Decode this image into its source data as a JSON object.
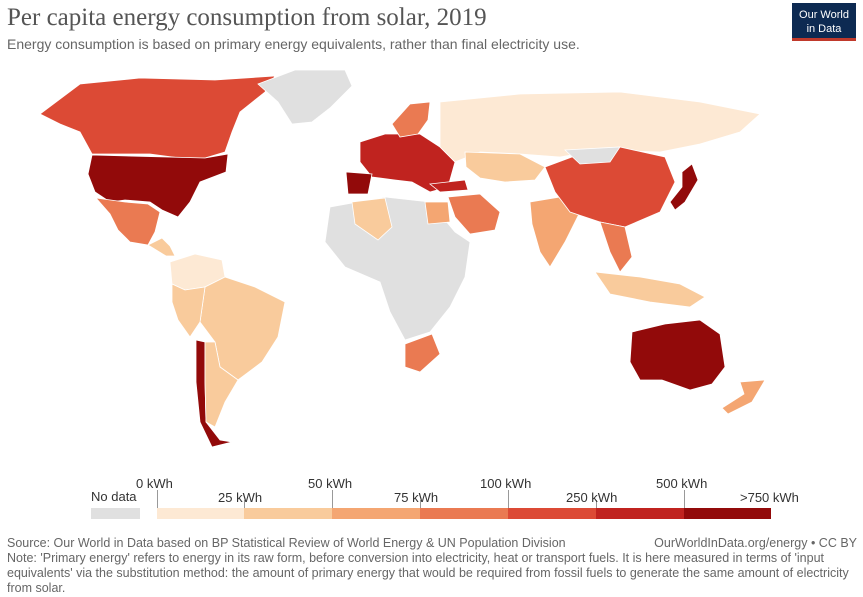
{
  "header": {
    "title": "Per capita energy consumption from solar, 2019",
    "subtitle": "Energy consumption is based on primary energy equivalents, rather than final electricity use.",
    "logo_line1": "Our World",
    "logo_line2": "in Data"
  },
  "legend": {
    "no_data_label": "No data",
    "top_ticks": [
      "0 kWh",
      "50 kWh",
      "100 kWh",
      "500 kWh"
    ],
    "bottom_ticks": [
      "25 kWh",
      "75 kWh",
      "250 kWh",
      ">750 kWh"
    ],
    "bins": [
      {
        "color": "#fde9d4"
      },
      {
        "color": "#f9cb9c"
      },
      {
        "color": "#f4a672"
      },
      {
        "color": "#ea7a52"
      },
      {
        "color": "#dc4a35"
      },
      {
        "color": "#c0231f"
      },
      {
        "color": "#920a0a"
      }
    ],
    "no_data_color": "#e0e0e0"
  },
  "footer": {
    "source": "Source: Our World in Data based on BP Statistical Review of World Energy & UN Population Division",
    "url": "OurWorldInData.org/energy • CC BY",
    "note": "Note: 'Primary energy' refers to energy in its raw form, before conversion into electricity, heat or transport fuels. It is here measured in terms of 'input equivalents' via the substitution method: the amount of primary energy that would be required from fossil fuels to generate the same amount of electricity from solar."
  },
  "regions": [
    {
      "name": "Canada",
      "color": "#dc4a35"
    },
    {
      "name": "Greenland",
      "color": "#e0e0e0"
    },
    {
      "name": "United States",
      "color": "#920a0a"
    },
    {
      "name": "Mexico",
      "color": "#ea7a52"
    },
    {
      "name": "Central America",
      "color": "#f9cb9c"
    },
    {
      "name": "Colombia and Venezuela",
      "color": "#fde9d4"
    },
    {
      "name": "Brazil",
      "color": "#f9cb9c"
    },
    {
      "name": "Peru",
      "color": "#f9cb9c"
    },
    {
      "name": "Chile",
      "color": "#920a0a"
    },
    {
      "name": "Argentina",
      "color": "#f9cb9c"
    },
    {
      "name": "Europe",
      "color": "#c0231f"
    },
    {
      "name": "Spain and Portugal",
      "color": "#920a0a"
    },
    {
      "name": "Scandinavia",
      "color": "#ea7a52"
    },
    {
      "name": "Russia",
      "color": "#fde9d4"
    },
    {
      "name": "Kazakhstan",
      "color": "#f9cb9c"
    },
    {
      "name": "Turkey",
      "color": "#c0231f"
    },
    {
      "name": "Africa",
      "color": "#e0e0e0"
    },
    {
      "name": "Algeria",
      "color": "#f9cb9c"
    },
    {
      "name": "Egypt",
      "color": "#f4a672"
    },
    {
      "name": "South Africa",
      "color": "#ea7a52"
    },
    {
      "name": "Middle East",
      "color": "#ea7a52"
    },
    {
      "name": "India",
      "color": "#f4a672"
    },
    {
      "name": "China",
      "color": "#dc4a35"
    },
    {
      "name": "Mongolia",
      "color": "#e0e0e0"
    },
    {
      "name": "Japan",
      "color": "#920a0a"
    },
    {
      "name": "Southeast Asia",
      "color": "#ea7a52"
    },
    {
      "name": "Indonesia",
      "color": "#f9cb9c"
    },
    {
      "name": "Australia",
      "color": "#920a0a"
    },
    {
      "name": "New Zealand",
      "color": "#f4a672"
    }
  ]
}
